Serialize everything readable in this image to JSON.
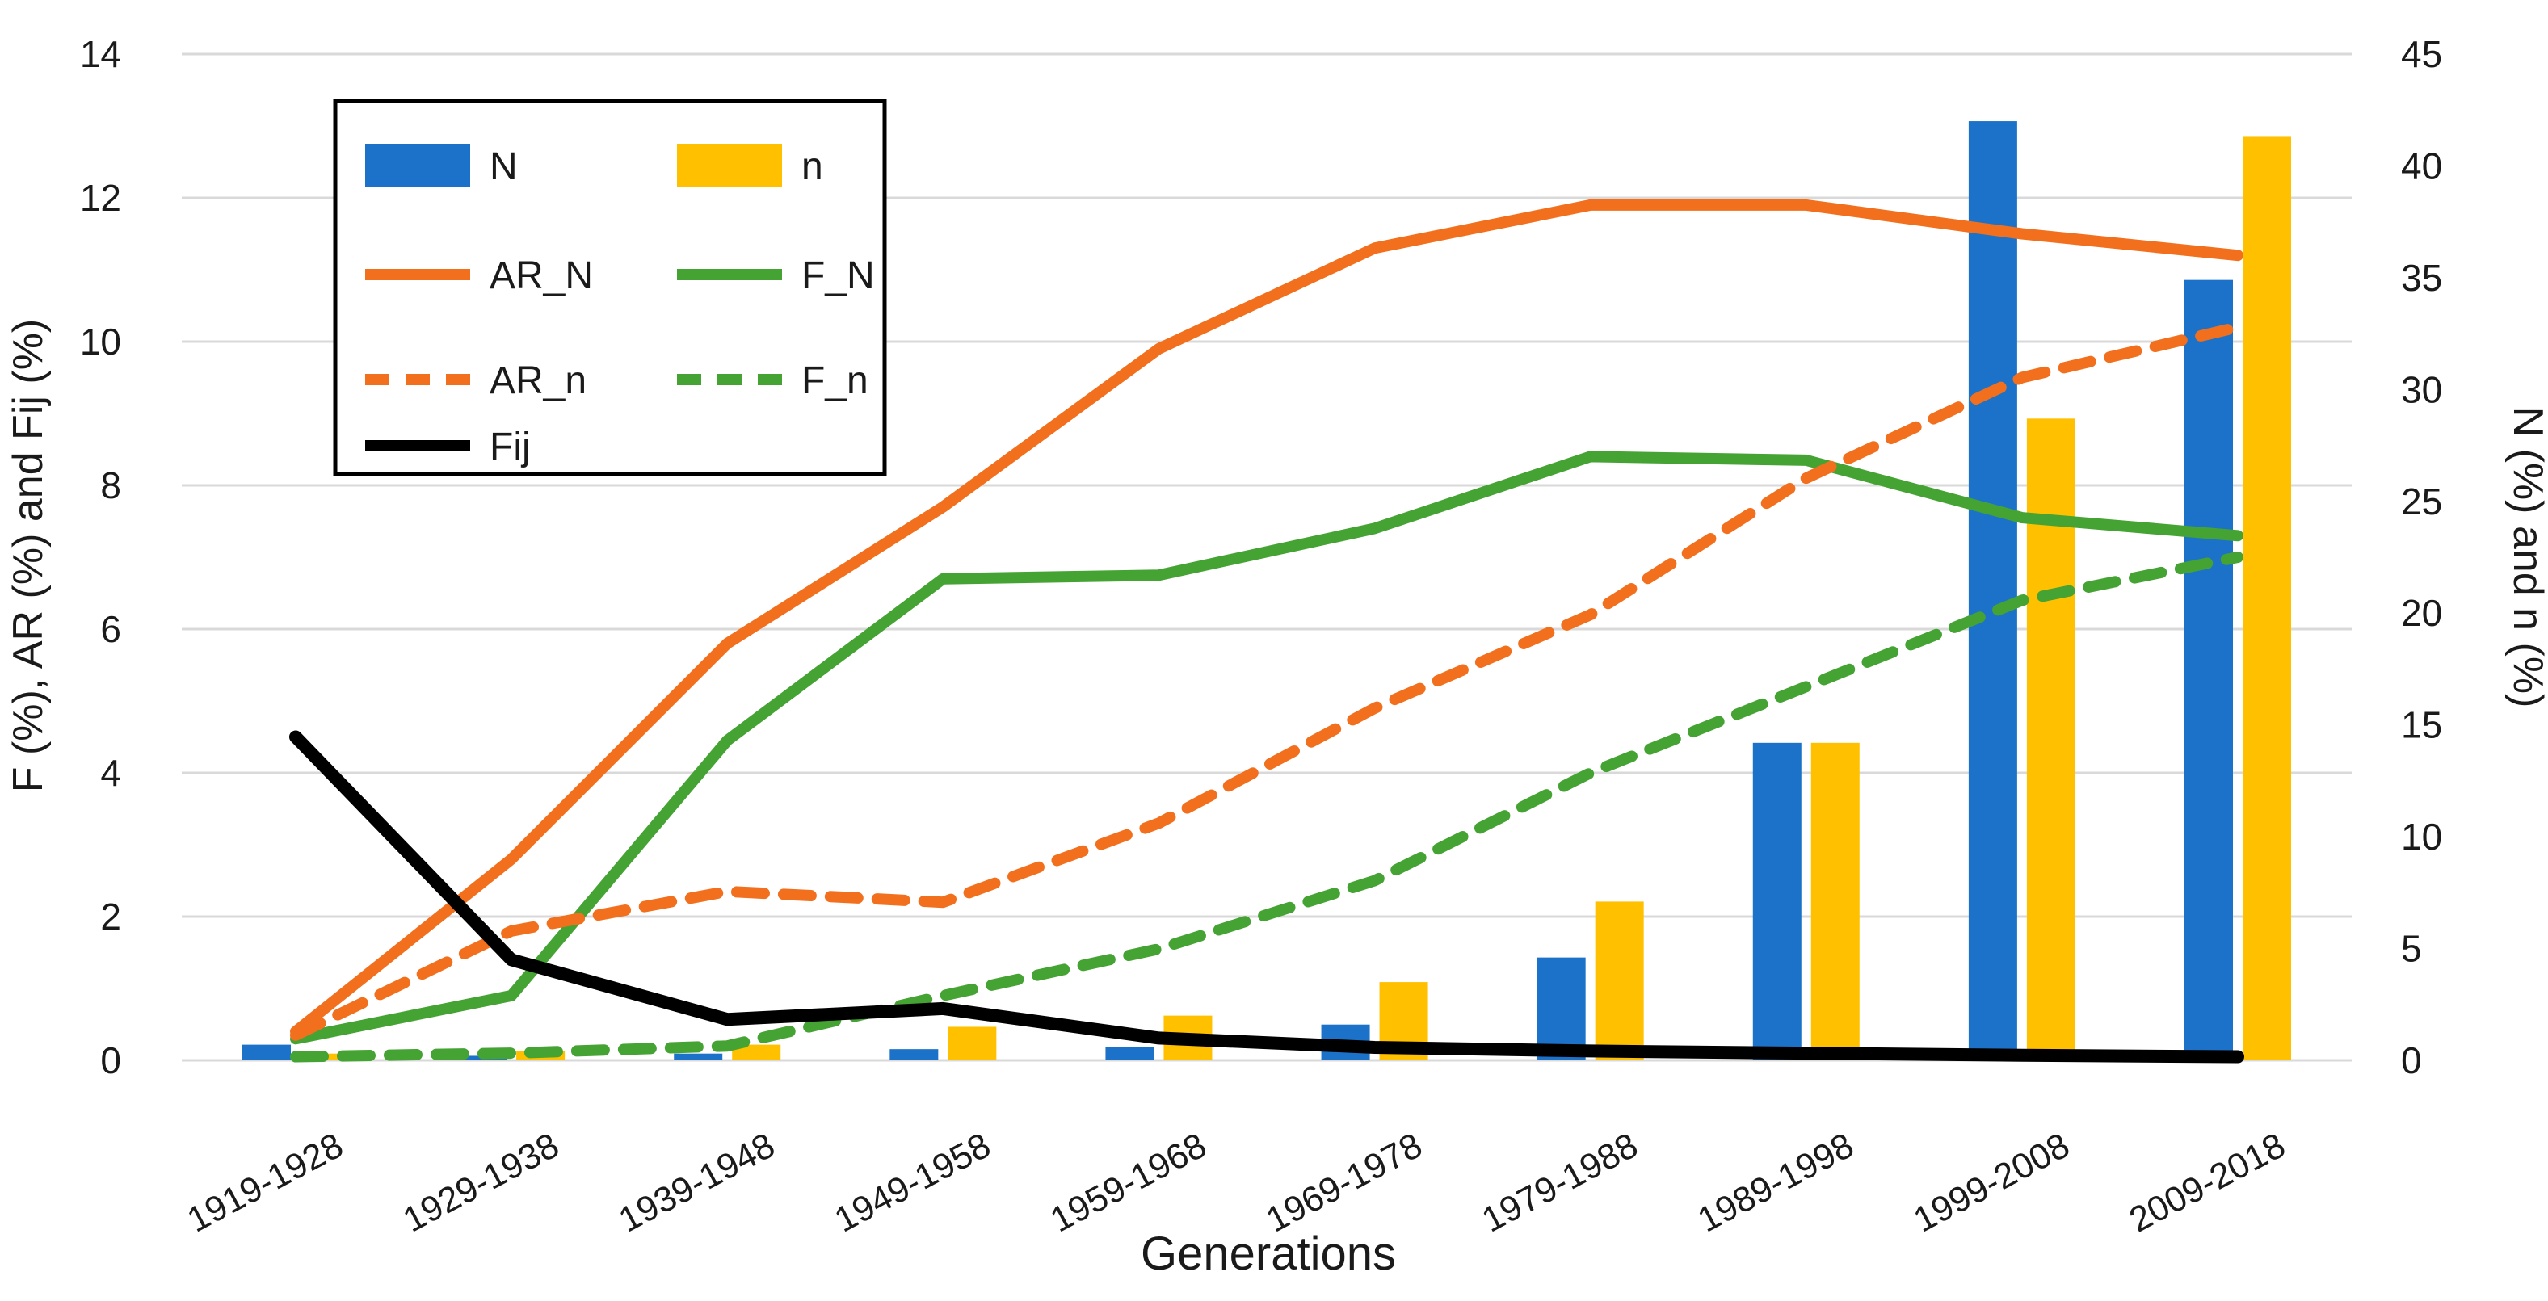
{
  "chart_data": {
    "type": "combo-bar-line",
    "title": "",
    "xlabel": "Generations",
    "ylabel_left": "F (%), AR (%) and Fij (%)",
    "ylabel_right": "N (%) and n (%)",
    "grid": true,
    "legend_position": "top-left-inside",
    "categories": [
      "1919-1928",
      "1929-1938",
      "1939-1948",
      "1949-1958",
      "1959-1968",
      "1969-1978",
      "1979-1988",
      "1989-1998",
      "1999-2008",
      "2009-2018"
    ],
    "left_axis": {
      "min": 0,
      "max": 14,
      "ticks": [
        0,
        2,
        4,
        6,
        8,
        10,
        12,
        14
      ]
    },
    "right_axis": {
      "min": 0,
      "max": 45,
      "ticks": [
        0,
        5,
        10,
        15,
        20,
        25,
        30,
        35,
        40,
        45
      ]
    },
    "bar_series": [
      {
        "name": "N",
        "axis": "right",
        "color": "#1c72c8",
        "values": [
          0.7,
          0.2,
          0.3,
          0.5,
          0.6,
          1.6,
          4.6,
          14.2,
          42.0,
          34.9
        ]
      },
      {
        "name": "n",
        "axis": "right",
        "color": "#ffc000",
        "values": [
          0.3,
          0.4,
          0.7,
          1.5,
          2.0,
          3.5,
          7.1,
          14.2,
          28.7,
          41.3
        ]
      }
    ],
    "line_series": [
      {
        "name": "AR_N",
        "axis": "left",
        "color": "#f2701d",
        "dash": "solid",
        "values": [
          0.4,
          2.8,
          5.8,
          7.7,
          9.9,
          11.3,
          11.9,
          11.9,
          11.5,
          11.2
        ]
      },
      {
        "name": "F_N",
        "axis": "left",
        "color": "#44a333",
        "dash": "solid",
        "values": [
          0.3,
          0.9,
          4.45,
          6.7,
          6.75,
          7.4,
          8.4,
          8.35,
          7.55,
          7.3
        ]
      },
      {
        "name": "AR_n",
        "axis": "left",
        "color": "#f2701d",
        "dash": "dashed",
        "values": [
          0.35,
          1.8,
          2.35,
          2.2,
          3.3,
          4.9,
          6.2,
          8.1,
          9.5,
          10.2
        ]
      },
      {
        "name": "F_n",
        "axis": "left",
        "color": "#44a333",
        "dash": "dashed",
        "values": [
          0.05,
          0.1,
          0.2,
          0.9,
          1.55,
          2.5,
          4.0,
          5.2,
          6.4,
          7.0
        ]
      },
      {
        "name": "Fij",
        "axis": "left",
        "color": "#000000",
        "dash": "solid",
        "values": [
          4.5,
          1.4,
          0.57,
          0.72,
          0.31,
          0.18,
          0.13,
          0.1,
          0.07,
          0.05
        ]
      }
    ],
    "colors": {
      "grid": "#d9d9d9",
      "bar_blue": "#1c72c8",
      "bar_yellow": "#ffc000",
      "line_orange": "#f2701d",
      "line_green": "#44a333",
      "line_black": "#000000"
    }
  },
  "legend": {
    "items": [
      "N",
      "n",
      "AR_N",
      "F_N",
      "AR_n",
      "F_n",
      "Fij"
    ]
  },
  "axis_titles": {
    "x": "Generations",
    "left": "F (%), AR (%) and Fij (%)",
    "right": "N (%) and n (%)"
  }
}
